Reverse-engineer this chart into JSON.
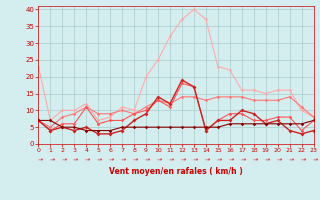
{
  "xlabel": "Vent moyen/en rafales ( km/h )",
  "xlim": [
    0,
    23
  ],
  "ylim": [
    0,
    41
  ],
  "yticks": [
    0,
    5,
    10,
    15,
    20,
    25,
    30,
    35,
    40
  ],
  "xticks": [
    0,
    1,
    2,
    3,
    4,
    5,
    6,
    7,
    8,
    9,
    10,
    11,
    12,
    13,
    14,
    15,
    16,
    17,
    18,
    19,
    20,
    21,
    22,
    23
  ],
  "bg_color": "#d4eef0",
  "grid_color": "#aacccc",
  "series": [
    {
      "color": "#ffaaaa",
      "linewidth": 0.8,
      "marker": "D",
      "markersize": 1.8,
      "y": [
        23,
        7,
        10,
        10,
        12,
        7,
        8,
        11,
        10,
        20,
        25,
        32,
        37,
        40,
        37,
        23,
        22,
        16,
        16,
        15,
        16,
        16,
        10,
        8
      ]
    },
    {
      "color": "#ff7777",
      "linewidth": 0.8,
      "marker": "D",
      "markersize": 1.8,
      "y": [
        7,
        5,
        8,
        9,
        11,
        9,
        9,
        10,
        9,
        11,
        13,
        12,
        14,
        14,
        13,
        14,
        14,
        14,
        13,
        13,
        13,
        14,
        11,
        8
      ]
    },
    {
      "color": "#ff5555",
      "linewidth": 0.8,
      "marker": "D",
      "markersize": 1.8,
      "y": [
        7,
        4,
        6,
        6,
        11,
        6,
        7,
        7,
        9,
        10,
        13,
        11,
        18,
        17,
        4,
        7,
        9,
        9,
        7,
        7,
        8,
        8,
        4,
        7
      ]
    },
    {
      "color": "#cc2222",
      "linewidth": 1.0,
      "marker": "D",
      "markersize": 2.0,
      "y": [
        7,
        4,
        5,
        4,
        5,
        3,
        3,
        4,
        7,
        9,
        14,
        12,
        19,
        17,
        4,
        7,
        7,
        10,
        9,
        6,
        7,
        4,
        3,
        4
      ]
    },
    {
      "color": "#880000",
      "linewidth": 0.8,
      "marker": "D",
      "markersize": 1.8,
      "y": [
        7,
        7,
        5,
        5,
        4,
        4,
        4,
        5,
        5,
        5,
        5,
        5,
        5,
        5,
        5,
        5,
        6,
        6,
        6,
        6,
        6,
        6,
        6,
        7
      ]
    }
  ]
}
